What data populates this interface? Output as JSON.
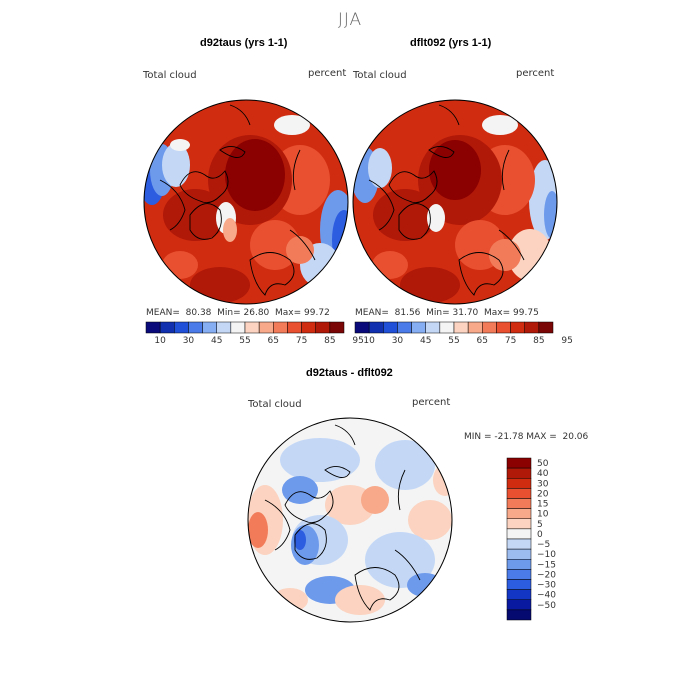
{
  "figure_title": "JJA",
  "panels": [
    {
      "title": "d92taus (yrs 1-1)",
      "variable": "Total cloud",
      "units": "percent",
      "mean_label": "MEAN=",
      "mean": "80.38",
      "min_label": "Min=",
      "min": "26.80",
      "max_label": "Max=",
      "max": "99.72"
    },
    {
      "title": "dflt092 (yrs 1-1)",
      "variable": "Total cloud",
      "units": "percent",
      "mean_label": "MEAN=",
      "mean": "81.56",
      "min_label": "Min=",
      "min": "31.70",
      "max_label": "Max=",
      "max": "99.75"
    },
    {
      "title": "d92taus - dflt092",
      "variable": "Total cloud",
      "units": "percent",
      "stats_text": "MIN = -21.78 MAX =  20.06"
    }
  ],
  "colorbar_abs": {
    "labels": [
      "10",
      "30",
      "45",
      "55",
      "65",
      "75",
      "85",
      "95"
    ],
    "colors": [
      "#0a0a7a",
      "#1030b0",
      "#2050d8",
      "#4a7be8",
      "#86aef2",
      "#c4d8f6",
      "#f4f4f4",
      "#fbd3c0",
      "#f7a98a",
      "#f27c5a",
      "#e85030",
      "#d02c10",
      "#b01808",
      "#7a0606"
    ]
  },
  "colorbar_diff": {
    "labels": [
      "50",
      "40",
      "30",
      "20",
      "15",
      "10",
      "5",
      "0",
      "-5",
      "-10",
      "-15",
      "-20",
      "-30",
      "-40",
      "-50"
    ],
    "colors": [
      "#8b0000",
      "#b01808",
      "#d02c10",
      "#e85030",
      "#f27c5a",
      "#f7a98a",
      "#fbd3c0",
      "#f4f4f4",
      "#c4d8f6",
      "#9cbcf0",
      "#6e9aec",
      "#4a7be8",
      "#2c5ce0",
      "#1436c4",
      "#0a1aa0",
      "#050a70"
    ]
  },
  "map_colors": {
    "deep": "#8b0000",
    "dark": "#b01808",
    "red": "#d02c10",
    "orange": "#e85030",
    "salmon": "#f27c5a",
    "light": "#f7a98a",
    "pale": "#fbd3c0",
    "white": "#f4f4f4",
    "lblue": "#c4d8f6",
    "blue": "#6e9aec",
    "dblue": "#2c5ce0",
    "coast": "#000000"
  }
}
